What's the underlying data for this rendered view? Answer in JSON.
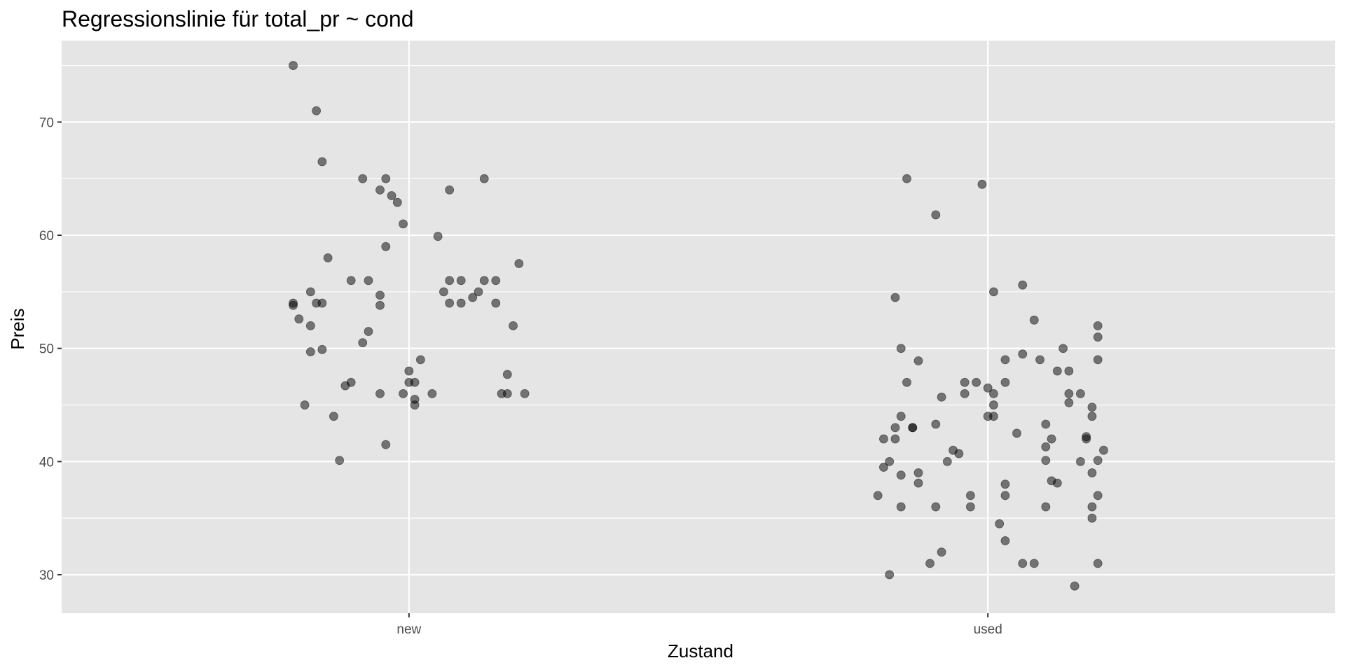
{
  "chart_data": {
    "type": "scatter",
    "title": "Regressionslinie für total_pr ~ cond",
    "xlabel": "Zustand",
    "ylabel": "Preis",
    "categories": [
      "new",
      "used"
    ],
    "ylim": [
      26.6,
      77.2
    ],
    "yticks": [
      30,
      40,
      50,
      60,
      70
    ],
    "grid": true,
    "point_color": "#000000",
    "point_opacity": 0.5,
    "panel_background": "#e5e5e5",
    "grid_color": "#ffffff",
    "series": [
      {
        "category": "new",
        "points": [
          [
            -0.2,
            75.0
          ],
          [
            -0.16,
            71.0
          ],
          [
            -0.15,
            66.5
          ],
          [
            -0.08,
            65.0
          ],
          [
            -0.04,
            65.0
          ],
          [
            -0.05,
            64.0
          ],
          [
            -0.03,
            63.5
          ],
          [
            -0.02,
            62.9
          ],
          [
            -0.01,
            61.0
          ],
          [
            0.07,
            64.0
          ],
          [
            0.13,
            65.0
          ],
          [
            0.05,
            59.9
          ],
          [
            -0.04,
            59.0
          ],
          [
            -0.14,
            58.0
          ],
          [
            0.19,
            57.5
          ],
          [
            -0.1,
            56.0
          ],
          [
            -0.07,
            56.0
          ],
          [
            0.07,
            56.0
          ],
          [
            0.09,
            56.0
          ],
          [
            0.13,
            56.0
          ],
          [
            0.15,
            56.0
          ],
          [
            -0.17,
            55.0
          ],
          [
            0.06,
            55.0
          ],
          [
            0.12,
            55.0
          ],
          [
            -0.05,
            54.7
          ],
          [
            0.11,
            54.5
          ],
          [
            -0.2,
            54.0
          ],
          [
            -0.16,
            54.0
          ],
          [
            -0.15,
            54.0
          ],
          [
            0.07,
            54.0
          ],
          [
            0.09,
            54.0
          ],
          [
            0.15,
            54.0
          ],
          [
            -0.05,
            53.8
          ],
          [
            -0.2,
            53.8
          ],
          [
            -0.19,
            52.6
          ],
          [
            -0.17,
            52.0
          ],
          [
            0.18,
            52.0
          ],
          [
            -0.07,
            51.5
          ],
          [
            -0.08,
            50.5
          ],
          [
            -0.15,
            49.9
          ],
          [
            -0.17,
            49.7
          ],
          [
            0.02,
            49.0
          ],
          [
            0.0,
            48.0
          ],
          [
            0.17,
            47.7
          ],
          [
            0.01,
            47.0
          ],
          [
            0.0,
            47.0
          ],
          [
            -0.1,
            47.0
          ],
          [
            -0.11,
            46.7
          ],
          [
            -0.05,
            46.0
          ],
          [
            -0.01,
            46.0
          ],
          [
            0.04,
            46.0
          ],
          [
            0.16,
            46.0
          ],
          [
            0.17,
            46.0
          ],
          [
            0.2,
            46.0
          ],
          [
            0.01,
            45.5
          ],
          [
            0.01,
            45.0
          ],
          [
            -0.18,
            45.0
          ],
          [
            -0.13,
            44.0
          ],
          [
            -0.04,
            41.5
          ],
          [
            -0.12,
            40.1
          ]
        ]
      },
      {
        "category": "used",
        "points": [
          [
            -0.14,
            65.0
          ],
          [
            -0.01,
            64.5
          ],
          [
            -0.09,
            61.8
          ],
          [
            0.06,
            55.6
          ],
          [
            0.01,
            55.0
          ],
          [
            -0.16,
            54.5
          ],
          [
            0.08,
            52.5
          ],
          [
            0.19,
            52.0
          ],
          [
            0.19,
            51.0
          ],
          [
            -0.15,
            50.0
          ],
          [
            0.13,
            50.0
          ],
          [
            0.06,
            49.5
          ],
          [
            0.03,
            49.0
          ],
          [
            -0.12,
            48.9
          ],
          [
            0.09,
            49.0
          ],
          [
            0.19,
            49.0
          ],
          [
            0.12,
            48.0
          ],
          [
            0.14,
            48.0
          ],
          [
            -0.14,
            47.0
          ],
          [
            -0.04,
            47.0
          ],
          [
            -0.02,
            47.0
          ],
          [
            0.03,
            47.0
          ],
          [
            0.0,
            46.5
          ],
          [
            -0.04,
            46.0
          ],
          [
            0.01,
            46.0
          ],
          [
            0.14,
            46.0
          ],
          [
            0.16,
            46.0
          ],
          [
            -0.08,
            45.7
          ],
          [
            0.14,
            45.2
          ],
          [
            0.01,
            45.0
          ],
          [
            0.18,
            44.8
          ],
          [
            -0.15,
            44.0
          ],
          [
            0.0,
            44.0
          ],
          [
            0.01,
            44.0
          ],
          [
            0.18,
            44.0
          ],
          [
            -0.09,
            43.3
          ],
          [
            0.1,
            43.3
          ],
          [
            -0.16,
            43.0
          ],
          [
            -0.13,
            43.0
          ],
          [
            -0.13,
            43.0
          ],
          [
            0.05,
            42.5
          ],
          [
            0.17,
            42.2
          ],
          [
            -0.18,
            42.0
          ],
          [
            -0.16,
            42.0
          ],
          [
            0.11,
            42.0
          ],
          [
            0.17,
            42.0
          ],
          [
            0.1,
            41.3
          ],
          [
            0.2,
            41.0
          ],
          [
            -0.06,
            41.0
          ],
          [
            -0.05,
            40.7
          ],
          [
            -0.07,
            40.0
          ],
          [
            -0.17,
            40.0
          ],
          [
            0.1,
            40.1
          ],
          [
            0.16,
            40.0
          ],
          [
            0.19,
            40.1
          ],
          [
            -0.18,
            39.5
          ],
          [
            0.18,
            39.0
          ],
          [
            -0.12,
            39.0
          ],
          [
            -0.15,
            38.8
          ],
          [
            0.03,
            38.0
          ],
          [
            -0.12,
            38.1
          ],
          [
            0.11,
            38.3
          ],
          [
            0.12,
            38.1
          ],
          [
            -0.19,
            37.0
          ],
          [
            -0.03,
            37.0
          ],
          [
            0.03,
            37.0
          ],
          [
            0.19,
            37.0
          ],
          [
            -0.15,
            36.0
          ],
          [
            -0.09,
            36.0
          ],
          [
            -0.03,
            36.0
          ],
          [
            0.1,
            36.0
          ],
          [
            0.18,
            36.0
          ],
          [
            0.18,
            35.0
          ],
          [
            0.02,
            34.5
          ],
          [
            0.03,
            33.0
          ],
          [
            -0.08,
            32.0
          ],
          [
            -0.1,
            31.0
          ],
          [
            0.06,
            31.0
          ],
          [
            0.08,
            31.0
          ],
          [
            0.19,
            31.0
          ],
          [
            -0.17,
            30.0
          ],
          [
            0.15,
            29.0
          ]
        ]
      }
    ]
  }
}
